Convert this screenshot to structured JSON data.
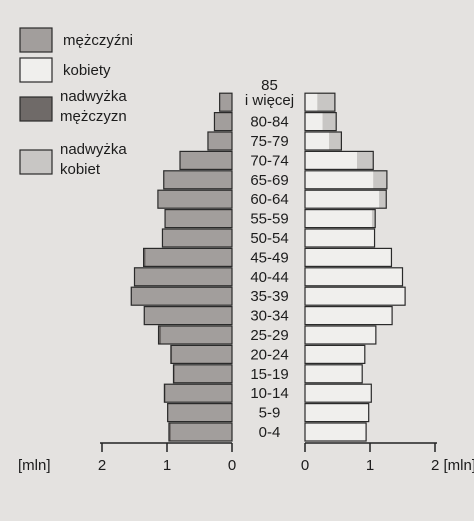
{
  "chart_data": {
    "type": "bar",
    "orientation": "horizontal-population-pyramid",
    "age_groups": [
      "0-4",
      "5-9",
      "10-14",
      "15-19",
      "20-24",
      "25-29",
      "30-34",
      "35-39",
      "40-44",
      "45-49",
      "50-54",
      "55-59",
      "60-64",
      "65-69",
      "70-74",
      "75-79",
      "80-84",
      "85 i więcej"
    ],
    "age_label_lines": [
      [
        "0-4"
      ],
      [
        "5-9"
      ],
      [
        "10-14"
      ],
      [
        "15-19"
      ],
      [
        "20-24"
      ],
      [
        "25-29"
      ],
      [
        "30-34"
      ],
      [
        "35-39"
      ],
      [
        "40-44"
      ],
      [
        "45-49"
      ],
      [
        "50-54"
      ],
      [
        "55-59"
      ],
      [
        "60-64"
      ],
      [
        "65-69"
      ],
      [
        "70-74"
      ],
      [
        "75-79"
      ],
      [
        "80-84"
      ],
      [
        "85",
        "i więcej"
      ]
    ],
    "series": [
      {
        "name": "mężczyźni",
        "side": "left",
        "color": "#a29e9c",
        "values": [
          0.97,
          0.99,
          1.04,
          0.9,
          0.94,
          1.13,
          1.35,
          1.55,
          1.5,
          1.36,
          1.07,
          1.03,
          1.14,
          1.05,
          0.8,
          0.37,
          0.27,
          0.19
        ]
      },
      {
        "name": "kobiety",
        "side": "right",
        "color": "#f0efed",
        "values": [
          0.94,
          0.98,
          1.02,
          0.88,
          0.92,
          1.09,
          1.34,
          1.54,
          1.5,
          1.33,
          1.07,
          1.08,
          1.25,
          1.26,
          1.05,
          0.56,
          0.48,
          0.46
        ]
      }
    ],
    "surplus": [
      {
        "name": "nadwyżka mężczyzn",
        "color": "#6f6a68"
      },
      {
        "name": "nadwyżka kobiet",
        "color": "#c8c6c4"
      }
    ],
    "legend": {
      "position": "top-left",
      "items": [
        {
          "label_lines": [
            "mężczyźni"
          ],
          "color": "#a29e9c"
        },
        {
          "label_lines": [
            "kobiety"
          ],
          "color": "#f0efed"
        },
        {
          "label_lines": [
            "nadwyżka",
            "mężczyzn"
          ],
          "color": "#6f6a68"
        },
        {
          "label_lines": [
            "nadwyżka",
            "kobiet"
          ],
          "color": "#c8c6c4"
        }
      ]
    },
    "x_axis": {
      "unit_label": "[mln]",
      "left_ticks": [
        "2",
        "1",
        "0"
      ],
      "right_ticks": [
        "0",
        "1",
        "2 [mln]"
      ],
      "range": [
        0,
        2
      ]
    }
  }
}
